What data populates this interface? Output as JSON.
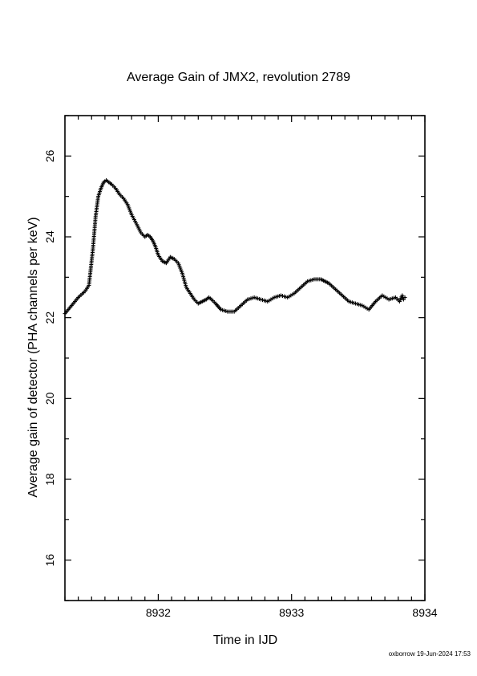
{
  "chart_data": {
    "type": "scatter",
    "title": "Average Gain of JMX2, revolution 2789",
    "xlabel": "Time in IJD",
    "ylabel": "Average gain of detector (PHA channels per keV)",
    "xlim": [
      8931.3,
      8934.0
    ],
    "ylim": [
      15.0,
      27.0
    ],
    "xticks": [
      8932,
      8933,
      8934
    ],
    "xtick_labels": [
      "8932",
      "8933",
      "8934"
    ],
    "yticks": [
      16,
      18,
      20,
      22,
      24,
      26
    ],
    "ytick_labels": [
      "16",
      "18",
      "20",
      "22",
      "24",
      "26"
    ],
    "marker": "+",
    "marker_color": "#000000",
    "grid": false,
    "series": [
      {
        "x": [
          8931.3,
          8931.35,
          8931.4,
          8931.45,
          8931.48,
          8931.51,
          8931.53,
          8931.55,
          8931.57,
          8931.59,
          8931.61,
          8931.63,
          8931.65,
          8931.68,
          8931.71,
          8931.74,
          8931.77,
          8931.8,
          8931.84,
          8931.87,
          8931.9,
          8931.92,
          8931.94,
          8931.96,
          8931.98,
          8932.0,
          8932.03,
          8932.06,
          8932.09,
          8932.12,
          8932.15,
          8932.18,
          8932.21,
          8932.24,
          8932.27,
          8932.3,
          8932.33,
          8932.36,
          8932.38,
          8932.4,
          8932.43,
          8932.47,
          8932.52,
          8932.57,
          8932.62,
          8932.67,
          8932.72,
          8932.77,
          8932.82,
          8932.87,
          8932.92,
          8932.97,
          8933.02,
          8933.07,
          8933.12,
          8933.17,
          8933.22,
          8933.25,
          8933.28,
          8933.33,
          8933.38,
          8933.43,
          8933.48,
          8933.53,
          8933.58,
          8933.63,
          8933.68,
          8933.73,
          8933.78,
          8933.81,
          8933.83,
          8933.84,
          8933.85
        ],
        "y": [
          22.1,
          22.3,
          22.5,
          22.65,
          22.8,
          23.7,
          24.5,
          25.0,
          25.2,
          25.35,
          25.4,
          25.35,
          25.3,
          25.2,
          25.05,
          24.95,
          24.8,
          24.55,
          24.3,
          24.1,
          24.0,
          24.05,
          24.0,
          23.9,
          23.75,
          23.55,
          23.4,
          23.35,
          23.5,
          23.45,
          23.35,
          23.1,
          22.75,
          22.6,
          22.45,
          22.35,
          22.4,
          22.45,
          22.5,
          22.45,
          22.35,
          22.2,
          22.15,
          22.15,
          22.3,
          22.45,
          22.5,
          22.45,
          22.4,
          22.5,
          22.55,
          22.5,
          22.6,
          22.75,
          22.9,
          22.95,
          22.95,
          22.9,
          22.85,
          22.7,
          22.55,
          22.4,
          22.35,
          22.3,
          22.2,
          22.4,
          22.55,
          22.45,
          22.5,
          22.4,
          22.55,
          22.45,
          22.5
        ]
      }
    ]
  },
  "footer": {
    "credit": "oxborrow 19-Jun-2024 17:53"
  }
}
